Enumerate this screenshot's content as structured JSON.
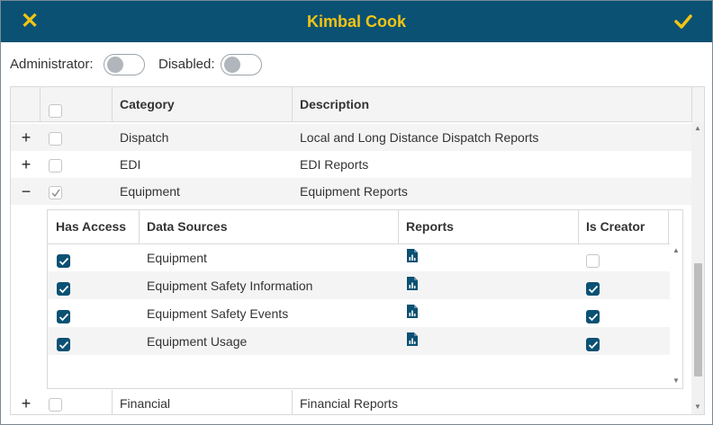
{
  "header": {
    "title": "Kimbal Cook",
    "close_icon": "close-icon",
    "confirm_icon": "check-icon",
    "accent": "#f2c414",
    "bar_color": "#0b5173"
  },
  "toggles": {
    "administrator": {
      "label": "Administrator:",
      "on": false
    },
    "disabled": {
      "label": "Disabled:",
      "on": false
    }
  },
  "grid": {
    "columns": [
      "",
      "",
      "Category",
      "Description"
    ],
    "rows": [
      {
        "expander": "+",
        "checked": false,
        "category": "Dispatch",
        "description": "Local and Long Distance Dispatch Reports"
      },
      {
        "expander": "+",
        "checked": false,
        "category": "EDI",
        "description": "EDI Reports"
      },
      {
        "expander": "−",
        "checked": true,
        "category": "Equipment",
        "description": "Equipment Reports"
      },
      {
        "expander": "+",
        "checked": false,
        "category": "Financial",
        "description": "Financial Reports"
      }
    ]
  },
  "detail": {
    "columns": [
      "Has Access",
      "Data Sources",
      "Reports",
      "Is Creator"
    ],
    "rows": [
      {
        "has_access": true,
        "data_source": "Equipment",
        "report_icon": "report-chart-icon",
        "is_creator": false
      },
      {
        "has_access": true,
        "data_source": "Equipment Safety Information",
        "report_icon": "report-chart-icon",
        "is_creator": true
      },
      {
        "has_access": true,
        "data_source": "Equipment Safety Events",
        "report_icon": "report-chart-icon",
        "is_creator": true
      },
      {
        "has_access": true,
        "data_source": "Equipment Usage",
        "report_icon": "report-chart-icon",
        "is_creator": true
      }
    ]
  }
}
